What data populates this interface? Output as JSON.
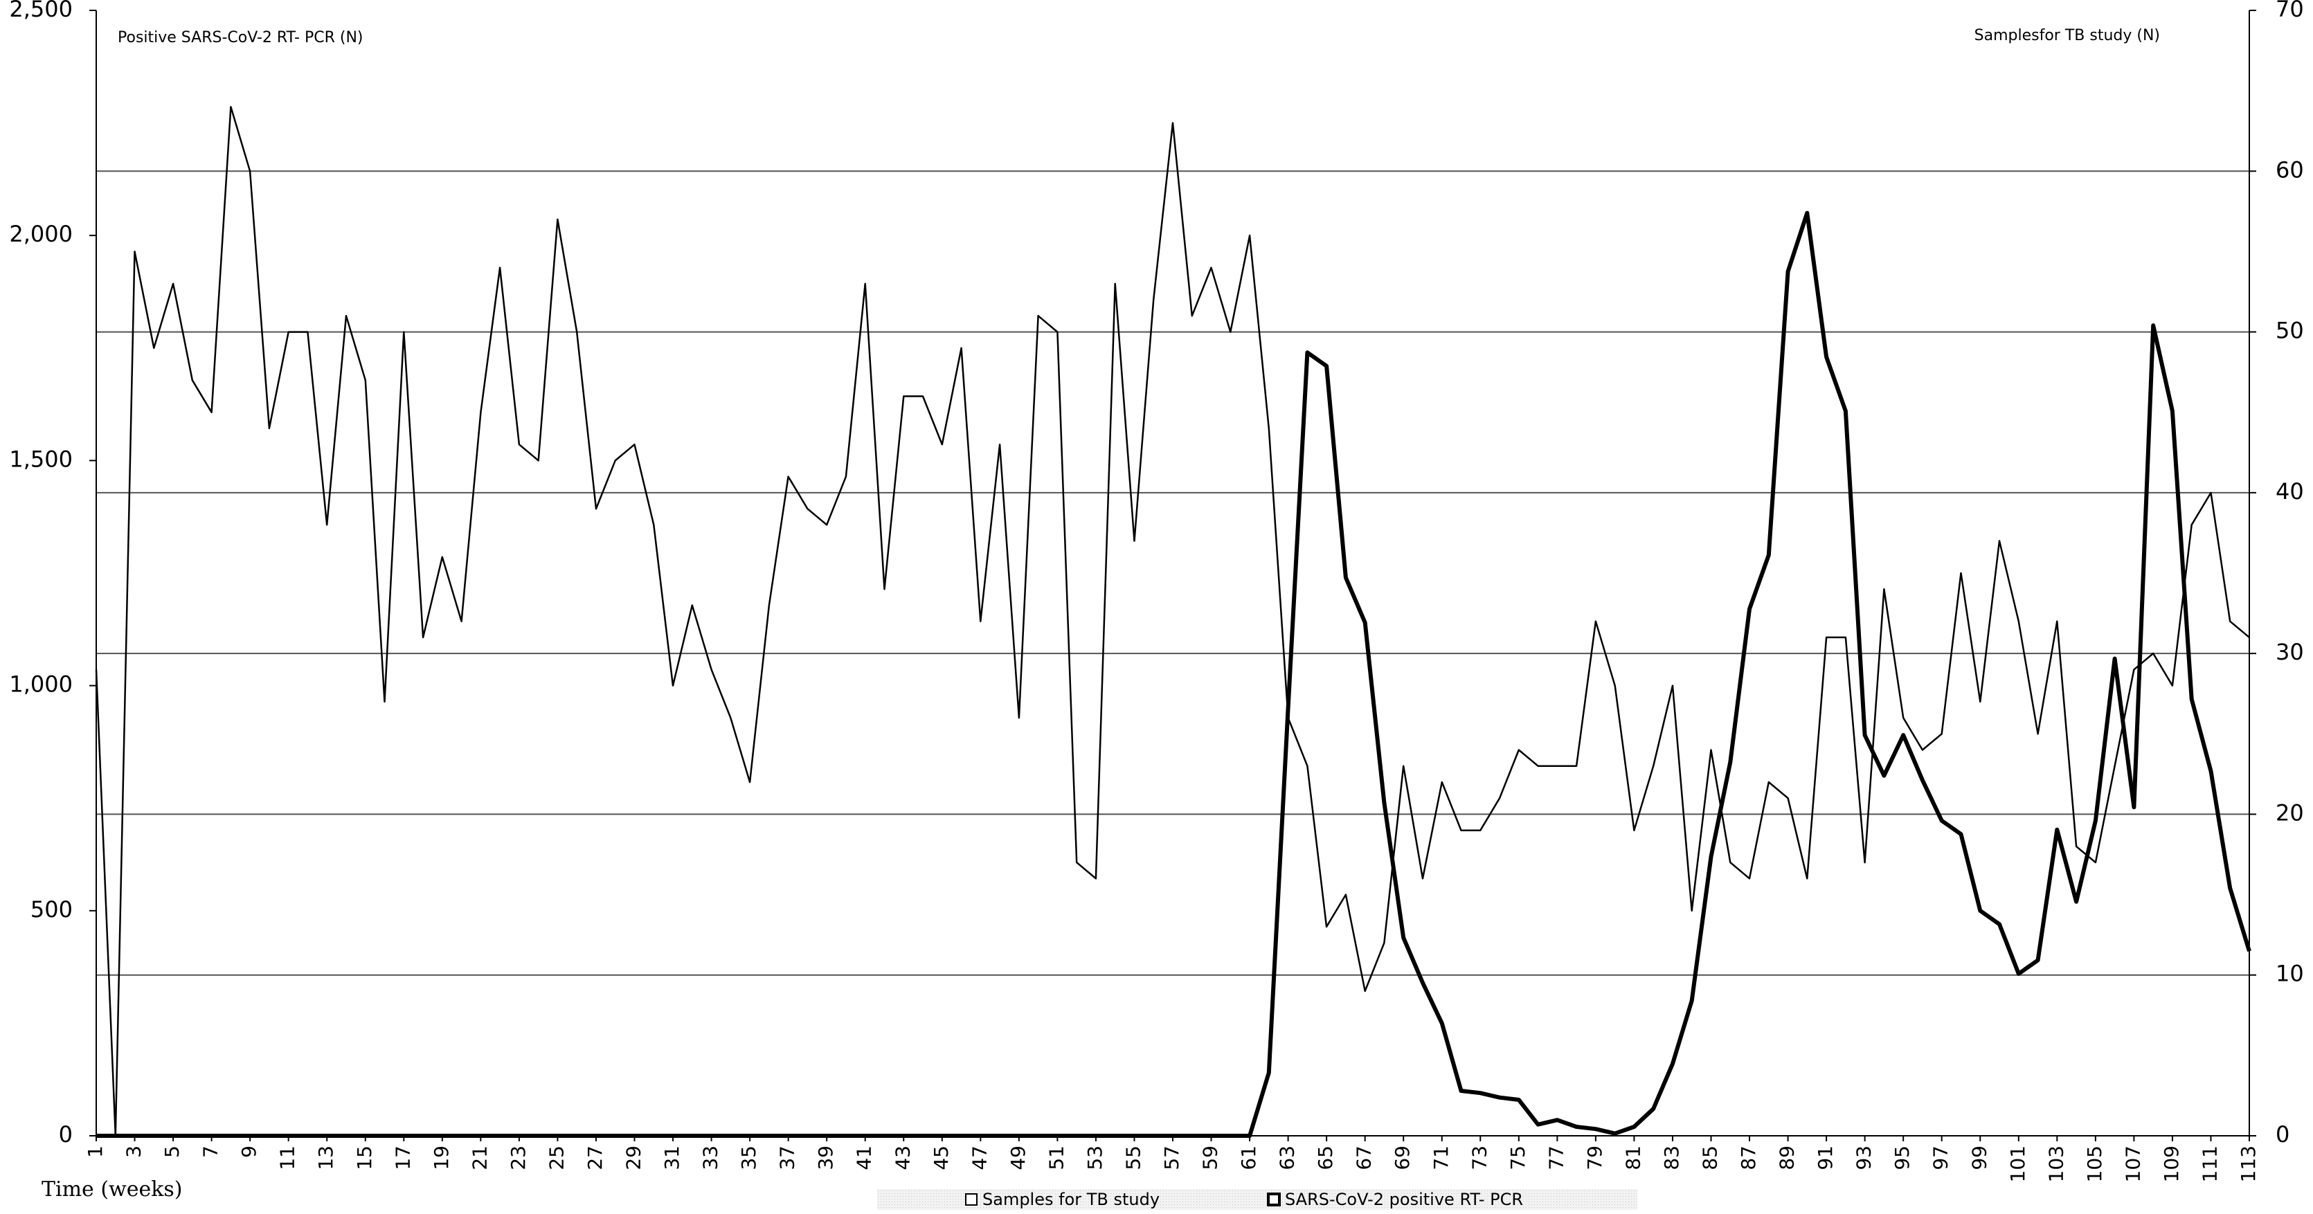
{
  "chart_data": {
    "type": "line",
    "ylabel": "Positive SARS-CoV-2  RT- PCR (N)",
    "y2label": "Samplesfor  TB study (N)",
    "xlabel": "Time (weeks)",
    "x": [
      1,
      2,
      3,
      4,
      5,
      6,
      7,
      8,
      9,
      10,
      11,
      12,
      13,
      14,
      15,
      16,
      17,
      18,
      19,
      20,
      21,
      22,
      23,
      24,
      25,
      26,
      27,
      28,
      29,
      30,
      31,
      32,
      33,
      34,
      35,
      36,
      37,
      38,
      39,
      40,
      41,
      42,
      43,
      44,
      45,
      46,
      47,
      48,
      49,
      50,
      51,
      52,
      53,
      54,
      55,
      56,
      57,
      58,
      59,
      60,
      61,
      62,
      63,
      64,
      65,
      66,
      67,
      68,
      69,
      70,
      71,
      72,
      73,
      74,
      75,
      76,
      77,
      78,
      79,
      80,
      81,
      82,
      83,
      84,
      85,
      86,
      87,
      88,
      89,
      90,
      91,
      92,
      93,
      94,
      95,
      96,
      97,
      98,
      99,
      100,
      101,
      102,
      103,
      104,
      105,
      106,
      107,
      108,
      109,
      110,
      111,
      112,
      113
    ],
    "xlim": [
      1,
      113
    ],
    "xticks": [
      1,
      3,
      5,
      7,
      9,
      11,
      13,
      15,
      17,
      19,
      21,
      23,
      25,
      27,
      29,
      31,
      33,
      35,
      37,
      39,
      41,
      43,
      45,
      47,
      49,
      51,
      53,
      55,
      57,
      59,
      61,
      63,
      65,
      67,
      69,
      71,
      73,
      75,
      77,
      79,
      81,
      83,
      85,
      87,
      89,
      91,
      93,
      95,
      97,
      99,
      101,
      103,
      105,
      107,
      109,
      111,
      113
    ],
    "ylim": [
      0,
      2500
    ],
    "yticks": [
      0,
      500,
      {
        "value": 1000,
        "label": "1,000"
      },
      {
        "value": 1500,
        "label": "1,500"
      },
      {
        "value": 2000,
        "label": "2,000"
      },
      {
        "value": 2500,
        "label": "2,500"
      }
    ],
    "y2lim": [
      0,
      70
    ],
    "y2ticks": [
      0,
      10,
      20,
      30,
      40,
      50,
      60,
      70
    ],
    "grid": "y2",
    "legend": "bottom",
    "series": [
      {
        "name": "Samples for TB study",
        "color": "#000000",
        "axis": "y2",
        "values": [
          29,
          0,
          55,
          49,
          53,
          47,
          45,
          64,
          60,
          44,
          50,
          50,
          38,
          51,
          47,
          27,
          50,
          31,
          36,
          32,
          45,
          54,
          43,
          42,
          57,
          50,
          39,
          42,
          43,
          38,
          28,
          33,
          29,
          26,
          22,
          33,
          41,
          39,
          38,
          41,
          53,
          34,
          46,
          46,
          43,
          49,
          32,
          43,
          26,
          51,
          50,
          17,
          16,
          53,
          37,
          52,
          63,
          51,
          54,
          50,
          56,
          44,
          26,
          23,
          13,
          15,
          9,
          12,
          23,
          16,
          22,
          19,
          19,
          21,
          24,
          23,
          23,
          23,
          32,
          28,
          19,
          23,
          28,
          14,
          24,
          17,
          16,
          22,
          21,
          16,
          31,
          31,
          17,
          34,
          26,
          24,
          25,
          35,
          27,
          37,
          32,
          25,
          32,
          18,
          17,
          23,
          29,
          30,
          28,
          38,
          40,
          32,
          31
        ]
      },
      {
        "name": "SARS-CoV-2 positive RT- PCR",
        "color": "#000000",
        "values": [
          0,
          0,
          0,
          0,
          0,
          0,
          0,
          0,
          0,
          0,
          0,
          0,
          0,
          0,
          0,
          0,
          0,
          0,
          0,
          0,
          0,
          0,
          0,
          0,
          0,
          0,
          0,
          0,
          0,
          0,
          0,
          0,
          0,
          0,
          0,
          0,
          0,
          0,
          0,
          0,
          0,
          0,
          0,
          0,
          0,
          0,
          0,
          0,
          0,
          0,
          0,
          0,
          0,
          0,
          0,
          0,
          0,
          0,
          0,
          0,
          0,
          140,
          950,
          1740,
          1710,
          1240,
          1140,
          740,
          440,
          340,
          250,
          100,
          95,
          85,
          80,
          25,
          35,
          20,
          15,
          5,
          20,
          60,
          160,
          300,
          620,
          830,
          1170,
          1290,
          1920,
          2050,
          1730,
          1610,
          890,
          800,
          890,
          790,
          700,
          670,
          500,
          470,
          360,
          390,
          680,
          520,
          700,
          1060,
          730,
          1800,
          1610,
          970,
          810,
          550,
          410
        ]
      }
    ]
  }
}
